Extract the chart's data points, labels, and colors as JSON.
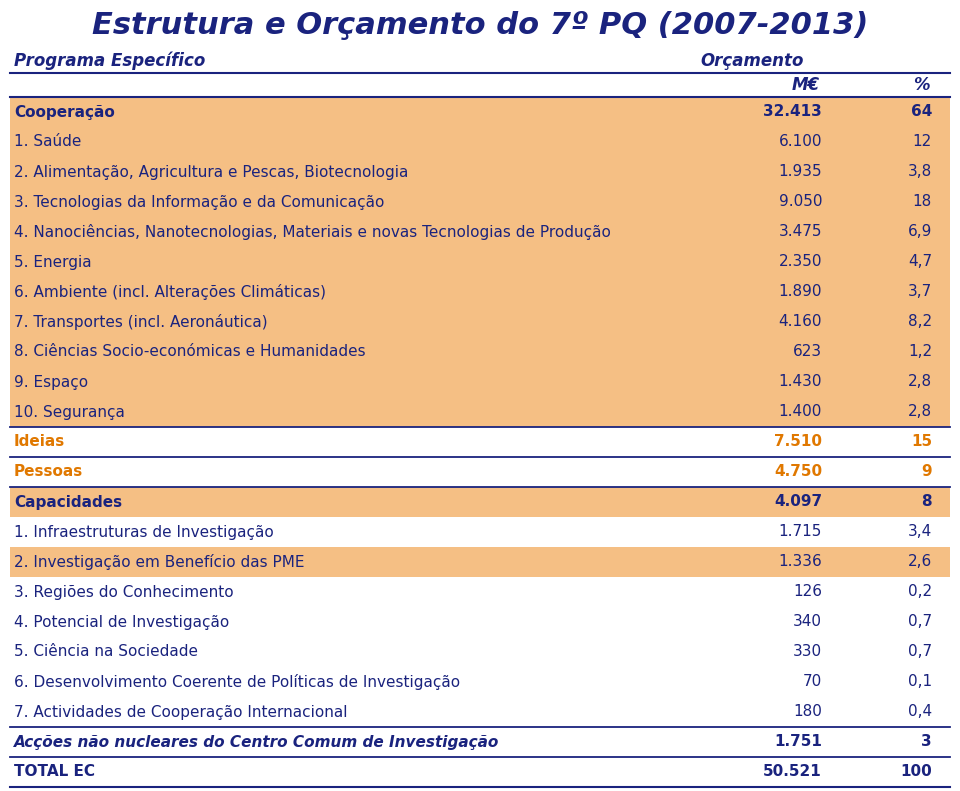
{
  "title": "Estrutura e Orçamento do 7º PQ (2007-2013)",
  "col1_header": "Programa Específico",
  "col2_header": "Orçamento",
  "col3_header": "M€",
  "col4_header": "%",
  "rows": [
    {
      "label": "Cooperação",
      "value": "32.413",
      "pct": "64",
      "bold": true,
      "bg": "orange",
      "label_color": "blue",
      "val_color": "blue"
    },
    {
      "label": "1. Saúde",
      "value": "6.100",
      "pct": "12",
      "bold": false,
      "bg": "orange",
      "label_color": "blue",
      "val_color": "blue"
    },
    {
      "label": "2. Alimentação, Agricultura e Pescas, Biotecnologia",
      "value": "1.935",
      "pct": "3,8",
      "bold": false,
      "bg": "orange",
      "label_color": "blue",
      "val_color": "blue"
    },
    {
      "label": "3. Tecnologias da Informação e da Comunicação",
      "value": "9.050",
      "pct": "18",
      "bold": false,
      "bg": "orange",
      "label_color": "blue",
      "val_color": "blue"
    },
    {
      "label": "4. Nanociências, Nanotecnologias, Materiais e novas Tecnologias de Produção",
      "value": "3.475",
      "pct": "6,9",
      "bold": false,
      "bg": "orange",
      "label_color": "blue",
      "val_color": "blue"
    },
    {
      "label": "5. Energia",
      "value": "2.350",
      "pct": "4,7",
      "bold": false,
      "bg": "orange",
      "label_color": "blue",
      "val_color": "blue"
    },
    {
      "label": "6. Ambiente (incl. Alterações Climáticas)",
      "value": "1.890",
      "pct": "3,7",
      "bold": false,
      "bg": "orange",
      "label_color": "blue",
      "val_color": "blue"
    },
    {
      "label": "7. Transportes (incl. Aeronáutica)",
      "value": "4.160",
      "pct": "8,2",
      "bold": false,
      "bg": "orange",
      "label_color": "blue",
      "val_color": "blue"
    },
    {
      "label": "8. Ciências Socio-económicas e Humanidades",
      "value": "623",
      "pct": "1,2",
      "bold": false,
      "bg": "orange",
      "label_color": "blue",
      "val_color": "blue"
    },
    {
      "label": "9. Espaço",
      "value": "1.430",
      "pct": "2,8",
      "bold": false,
      "bg": "orange",
      "label_color": "blue",
      "val_color": "blue"
    },
    {
      "label": "10. Segurança",
      "value": "1.400",
      "pct": "2,8",
      "bold": false,
      "bg": "orange",
      "label_color": "blue",
      "val_color": "blue"
    },
    {
      "label": "Ideias",
      "value": "7.510",
      "pct": "15",
      "bold": true,
      "bg": "white",
      "label_color": "orange",
      "val_color": "orange"
    },
    {
      "label": "Pessoas",
      "value": "4.750",
      "pct": "9",
      "bold": true,
      "bg": "white",
      "label_color": "orange",
      "val_color": "orange"
    },
    {
      "label": "Capacidades",
      "value": "4.097",
      "pct": "8",
      "bold": true,
      "bg": "orange",
      "label_color": "blue",
      "val_color": "blue"
    },
    {
      "label": "1. Infraestruturas de Investigação",
      "value": "1.715",
      "pct": "3,4",
      "bold": false,
      "bg": "white",
      "label_color": "blue",
      "val_color": "blue"
    },
    {
      "label": "2. Investigação em Benefício das PME",
      "value": "1.336",
      "pct": "2,6",
      "bold": false,
      "bg": "orange",
      "label_color": "blue",
      "val_color": "blue"
    },
    {
      "label": "3. Regiões do Conhecimento",
      "value": "126",
      "pct": "0,2",
      "bold": false,
      "bg": "white",
      "label_color": "blue",
      "val_color": "blue"
    },
    {
      "label": "4. Potencial de Investigação",
      "value": "340",
      "pct": "0,7",
      "bold": false,
      "bg": "white",
      "label_color": "blue",
      "val_color": "blue"
    },
    {
      "label": "5. Ciência na Sociedade",
      "value": "330",
      "pct": "0,7",
      "bold": false,
      "bg": "white",
      "label_color": "blue",
      "val_color": "blue"
    },
    {
      "label": "6. Desenvolvimento Coerente de Políticas de Investigação",
      "value": "70",
      "pct": "0,1",
      "bold": false,
      "bg": "white",
      "label_color": "blue",
      "val_color": "blue"
    },
    {
      "label": "7. Actividades de Cooperação Internacional",
      "value": "180",
      "pct": "0,4",
      "bold": false,
      "bg": "white",
      "label_color": "blue",
      "val_color": "blue"
    },
    {
      "label": "Acções não nucleares do Centro Comum de Investigação",
      "value": "1.751",
      "pct": "3",
      "bold": true,
      "bg": "white",
      "label_color": "blue",
      "val_color": "blue",
      "italic": true
    },
    {
      "label": "TOTAL EC",
      "value": "50.521",
      "pct": "100",
      "bold": true,
      "bg": "white",
      "label_color": "blue",
      "val_color": "blue",
      "italic": false
    }
  ],
  "orange_bg": "#f5bf84",
  "white_bg": "#ffffff",
  "line_color": "#1a237e",
  "text_blue": "#1a237e",
  "text_orange": "#e07800",
  "fig_width": 9.6,
  "fig_height": 7.91,
  "divider_above": [
    11,
    12,
    13,
    21,
    22
  ],
  "title_fontsize": 22,
  "header_fontsize": 12,
  "row_fontsize": 11
}
